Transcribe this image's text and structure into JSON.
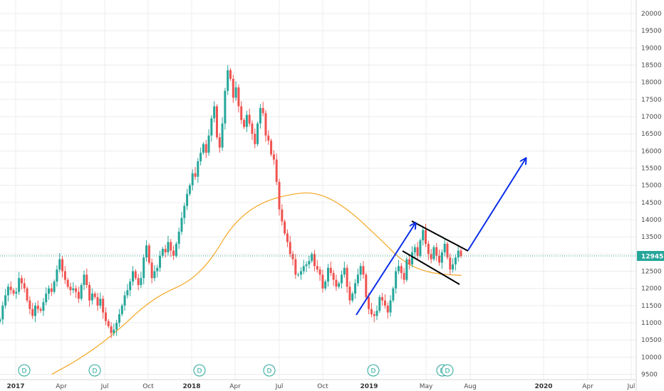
{
  "chart_data": {
    "type": "candlestick",
    "ylim": [
      9300,
      20300
    ],
    "y_ticks": [
      9500,
      10000,
      10500,
      11000,
      11500,
      12000,
      12500,
      13000,
      13500,
      14000,
      14500,
      15000,
      15500,
      16000,
      16500,
      17000,
      17500,
      18000,
      18500,
      19000,
      19500,
      20000
    ],
    "x_ticks": [
      {
        "label": "2017",
        "bold": true
      },
      {
        "label": "Apr",
        "bold": false
      },
      {
        "label": "Jul",
        "bold": false
      },
      {
        "label": "Oct",
        "bold": false
      },
      {
        "label": "2018",
        "bold": true
      },
      {
        "label": "Apr",
        "bold": false
      },
      {
        "label": "Jul",
        "bold": false
      },
      {
        "label": "Oct",
        "bold": false
      },
      {
        "label": "2019",
        "bold": true
      },
      {
        "label": "May",
        "bold": false
      },
      {
        "label": "Aug",
        "bold": false
      },
      {
        "label": "2020",
        "bold": true
      },
      {
        "label": "Apr",
        "bold": false
      },
      {
        "label": "Jul",
        "bold": false
      }
    ],
    "last_price": {
      "value": 12945,
      "label": "12945"
    },
    "close_series": [
      11100,
      11500,
      11800,
      12050,
      11950,
      11850,
      11900,
      12300,
      12150,
      12000,
      11650,
      11400,
      11200,
      11500,
      11400,
      11350,
      11600,
      11850,
      12000,
      11900,
      12200,
      12550,
      12850,
      12500,
      12250,
      12050,
      11950,
      12000,
      11900,
      11700,
      12100,
      12400,
      12100,
      11650,
      11850,
      11750,
      11500,
      11700,
      11300,
      11050,
      10900,
      10700,
      10800,
      11000,
      11250,
      11500,
      11800,
      11950,
      12200,
      12500,
      12300,
      12100,
      12300,
      12900,
      13250,
      12750,
      12300,
      12500,
      12600,
      12950,
      13150,
      13050,
      13350,
      13100,
      12950,
      13300,
      13650,
      14050,
      14400,
      14750,
      15000,
      15350,
      15250,
      15700,
      15950,
      16200,
      15950,
      16450,
      16950,
      17300,
      16400,
      16100,
      16800,
      17750,
      18350,
      18100,
      17550,
      17850,
      17300,
      16900,
      16700,
      17050,
      16800,
      16500,
      16200,
      16800,
      17250,
      17100,
      16450,
      16300,
      15900,
      15750,
      15100,
      14300,
      13950,
      13600,
      13350,
      13000,
      12850,
      12400,
      12400,
      12500,
      12650,
      12700,
      12800,
      13000,
      12650,
      12550,
      12400,
      12000,
      12200,
      12600,
      12450,
      12250,
      12050,
      12150,
      12400,
      12600,
      12050,
      11650,
      11850,
      12150,
      12400,
      12650,
      12400,
      11750,
      11400,
      11250,
      11200,
      11350,
      11750,
      11650,
      11500,
      11300,
      11650,
      12000,
      12500,
      12650,
      12450,
      12250,
      12850,
      12700,
      13050,
      13200,
      12950,
      13400,
      13700,
      13300,
      13000,
      12850,
      13200,
      12950,
      12750,
      13050,
      13300,
      12900,
      12550,
      12700,
      12900,
      13100,
      12945
    ],
    "ma_series": [
      [
        0.078,
        9500
      ],
      [
        0.12,
        9950
      ],
      [
        0.16,
        10500
      ],
      [
        0.19,
        11000
      ],
      [
        0.215,
        11450
      ],
      [
        0.245,
        11850
      ],
      [
        0.28,
        12150
      ],
      [
        0.305,
        12550
      ],
      [
        0.325,
        13050
      ],
      [
        0.345,
        13700
      ],
      [
        0.37,
        14200
      ],
      [
        0.4,
        14550
      ],
      [
        0.44,
        14750
      ],
      [
        0.47,
        14800
      ],
      [
        0.5,
        14600
      ],
      [
        0.53,
        14200
      ],
      [
        0.555,
        13750
      ],
      [
        0.58,
        13300
      ],
      [
        0.6,
        12900
      ],
      [
        0.625,
        12600
      ],
      [
        0.65,
        12450
      ],
      [
        0.675,
        12400
      ],
      [
        0.695,
        12380
      ]
    ],
    "grid": true,
    "annotations": {
      "dividend_markers": [
        "D",
        "D",
        "D",
        "D",
        "D",
        "D",
        "D"
      ],
      "channel_lines": 2,
      "arrows": 2
    },
    "colors": {
      "up": "#26a69a",
      "down": "#ef5350",
      "ma": "#f5a623",
      "annotation": "#000000",
      "arrow": "#0b2ee8",
      "price_line": "#26a69a",
      "grid": "#ececec"
    }
  }
}
